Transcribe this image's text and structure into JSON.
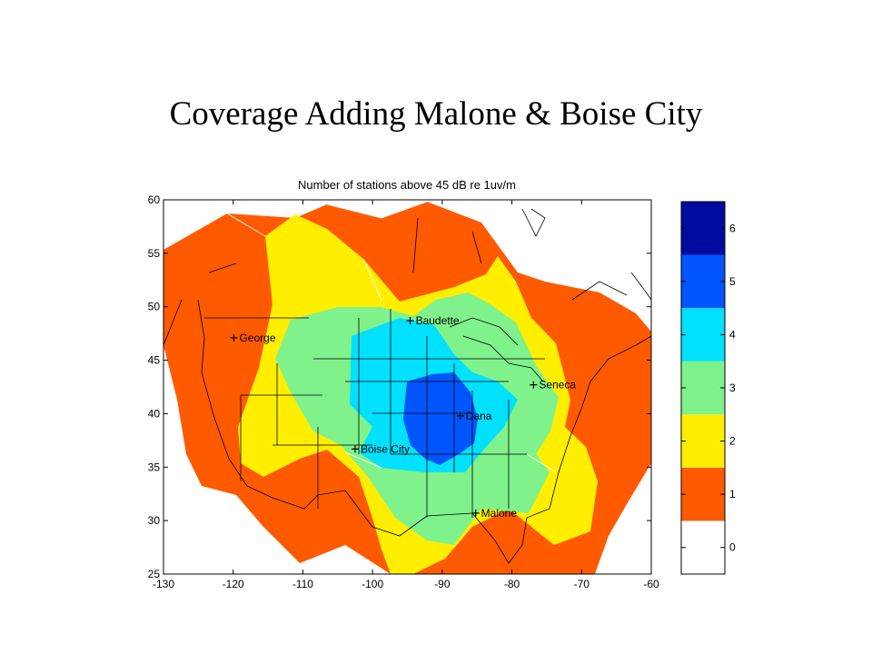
{
  "slide": {
    "title": "Coverage Adding Malone & Boise City"
  },
  "chart_data": {
    "type": "contour-map",
    "title": "Number of stations above 45 dB re 1uv/m",
    "xlim": [
      -130,
      -60
    ],
    "ylim": [
      25,
      60
    ],
    "xticks": [
      -130,
      -120,
      -110,
      -100,
      -90,
      -80,
      -70,
      -60
    ],
    "yticks": [
      25,
      30,
      35,
      40,
      45,
      50,
      55,
      60
    ],
    "stations": [
      {
        "name": "Baudette",
        "lon": -94.6,
        "lat": 48.7
      },
      {
        "name": "George",
        "lon": -119.9,
        "lat": 47.1
      },
      {
        "name": "Seneca",
        "lon": -76.9,
        "lat": 42.7
      },
      {
        "name": "Dana",
        "lon": -87.4,
        "lat": 39.8
      },
      {
        "name": "Boise City",
        "lon": -102.5,
        "lat": 36.7
      },
      {
        "name": "Malone",
        "lon": -85.2,
        "lat": 30.7
      }
    ],
    "colorbar": {
      "levels": [
        0,
        1,
        2,
        3,
        4,
        5,
        6
      ],
      "colors": [
        "#ffffff",
        "#ff5a00",
        "#ffee00",
        "#7ff28b",
        "#00e0ff",
        "#0055ff",
        "#000ca0"
      ]
    },
    "grid": false
  }
}
